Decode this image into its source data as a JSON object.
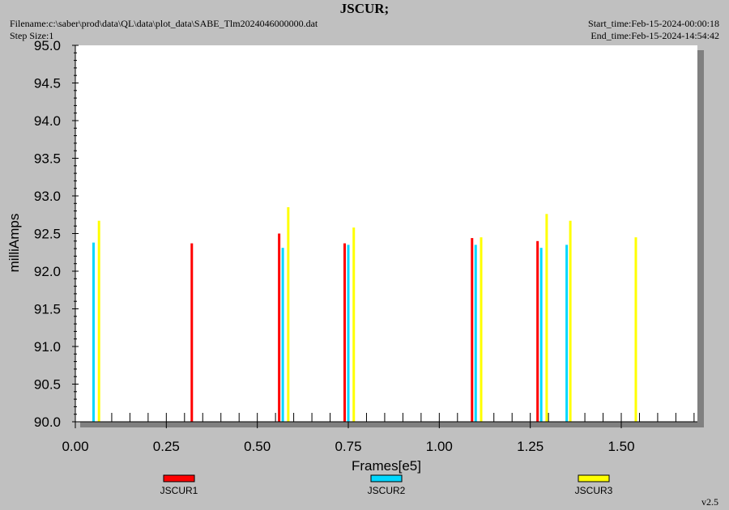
{
  "header": {
    "title": "JSCUR;",
    "filename": "Filename:c:\\saber\\prod\\data\\QL\\data\\plot_data\\SABE_Tlm2024046000000.dat",
    "step_size": "Step Size:1",
    "start_time": "Start_time:Feb-15-2024-00:00:18",
    "end_time": "End_time:Feb-15-2024-14:54:42"
  },
  "version": "v2.5",
  "colors": {
    "background": "#c0c0c0",
    "plot_area": "#ffffff",
    "shadow": "#808080",
    "JSCUR1": "#ff0000",
    "JSCUR2": "#00d8ff",
    "JSCUR3": "#ffff00"
  },
  "chart_data": {
    "type": "bar",
    "title": "JSCUR;",
    "xlabel": "Frames[e5]",
    "ylabel": "milliAmps",
    "xlim": [
      0.0,
      1.7
    ],
    "ylim": [
      90.0,
      95.0
    ],
    "x_tick_labels": [
      "0.00",
      "0.25",
      "0.50",
      "0.75",
      "1.00",
      "1.25",
      "1.50"
    ],
    "x_tick_values": [
      0.0,
      0.25,
      0.5,
      0.75,
      1.0,
      1.25,
      1.5
    ],
    "y_tick_labels": [
      "90.0",
      "90.5",
      "91.0",
      "91.5",
      "92.0",
      "92.5",
      "93.0",
      "93.5",
      "94.0",
      "94.5",
      "95.0"
    ],
    "y_tick_values": [
      90.0,
      90.5,
      91.0,
      91.5,
      92.0,
      92.5,
      93.0,
      93.5,
      94.0,
      94.5,
      95.0
    ],
    "legend_placement": "bottom",
    "series": [
      {
        "name": "JSCUR1",
        "points": [
          {
            "x": 0.32,
            "y": 92.37
          },
          {
            "x": 0.56,
            "y": 92.5
          },
          {
            "x": 0.74,
            "y": 92.37
          },
          {
            "x": 1.09,
            "y": 92.44
          },
          {
            "x": 1.27,
            "y": 92.4
          }
        ]
      },
      {
        "name": "JSCUR2",
        "points": [
          {
            "x": 0.05,
            "y": 92.38
          },
          {
            "x": 0.57,
            "y": 92.31
          },
          {
            "x": 0.75,
            "y": 92.35
          },
          {
            "x": 1.1,
            "y": 92.35
          },
          {
            "x": 1.28,
            "y": 92.31
          },
          {
            "x": 1.35,
            "y": 92.35
          }
        ]
      },
      {
        "name": "JSCUR3",
        "points": [
          {
            "x": 0.065,
            "y": 92.67
          },
          {
            "x": 0.585,
            "y": 92.85
          },
          {
            "x": 0.765,
            "y": 92.58
          },
          {
            "x": 1.115,
            "y": 92.45
          },
          {
            "x": 1.295,
            "y": 92.76
          },
          {
            "x": 1.36,
            "y": 92.67
          },
          {
            "x": 1.54,
            "y": 92.45
          }
        ]
      }
    ]
  }
}
